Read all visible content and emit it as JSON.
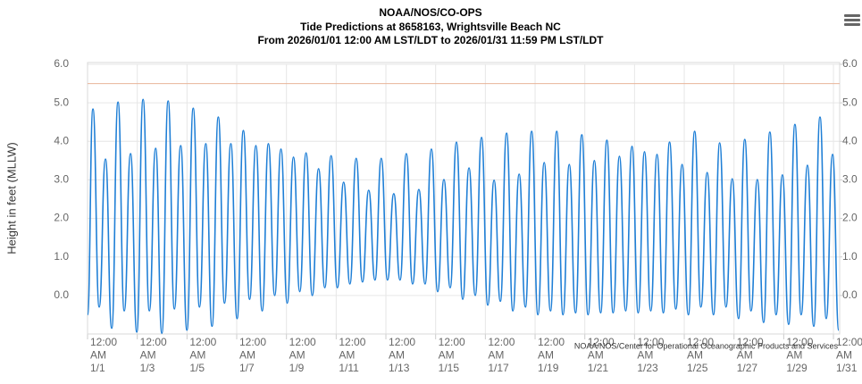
{
  "chart_data": {
    "type": "line",
    "title_lines": [
      "NOAA/NOS/CO-OPS",
      "Tide Predictions at 8658163, Wrightsville Beach NC",
      "From 2026/01/01 12:00 AM LST/LDT to 2026/01/31 11:59 PM LST/LDT"
    ],
    "ylabel": "Height in feet (MLLW)",
    "credit": "NOAA/NOS/Center for Operational Oceanographic Products and Services",
    "grid": true,
    "reference_line": {
      "value": 5.5,
      "color": "#e8b49a"
    },
    "xlim": [
      "2026/01/01 00:00",
      "2026/01/31 06:00"
    ],
    "xticks": [
      {
        "value": "2026/01/01 00:00",
        "label": [
          "12:00",
          "AM",
          "1/1"
        ]
      },
      {
        "value": "2026/01/03 00:00",
        "label": [
          "12:00",
          "AM",
          "1/3"
        ]
      },
      {
        "value": "2026/01/05 00:00",
        "label": [
          "12:00",
          "AM",
          "1/5"
        ]
      },
      {
        "value": "2026/01/07 00:00",
        "label": [
          "12:00",
          "AM",
          "1/7"
        ]
      },
      {
        "value": "2026/01/09 00:00",
        "label": [
          "12:00",
          "AM",
          "1/9"
        ]
      },
      {
        "value": "2026/01/11 00:00",
        "label": [
          "12:00",
          "AM",
          "1/11"
        ]
      },
      {
        "value": "2026/01/13 00:00",
        "label": [
          "12:00",
          "AM",
          "1/13"
        ]
      },
      {
        "value": "2026/01/15 00:00",
        "label": [
          "12:00",
          "AM",
          "1/15"
        ]
      },
      {
        "value": "2026/01/17 00:00",
        "label": [
          "12:00",
          "AM",
          "1/17"
        ]
      },
      {
        "value": "2026/01/19 00:00",
        "label": [
          "12:00",
          "AM",
          "1/19"
        ]
      },
      {
        "value": "2026/01/21 00:00",
        "label": [
          "12:00",
          "AM",
          "1/21"
        ]
      },
      {
        "value": "2026/01/23 00:00",
        "label": [
          "12:00",
          "AM",
          "1/23"
        ]
      },
      {
        "value": "2026/01/25 00:00",
        "label": [
          "12:00",
          "AM",
          "1/25"
        ]
      },
      {
        "value": "2026/01/27 00:00",
        "label": [
          "12:00",
          "AM",
          "1/27"
        ]
      },
      {
        "value": "2026/01/29 00:00",
        "label": [
          "12:00",
          "AM",
          "1/29"
        ]
      },
      {
        "value": "2026/01/31 00:00",
        "label": [
          "12:00",
          "AM",
          "1/31"
        ]
      }
    ],
    "ylim": [
      -1,
      6
    ],
    "yticks": [
      {
        "value": 0,
        "label": "0.0"
      },
      {
        "value": 1,
        "label": "1.0"
      },
      {
        "value": 2,
        "label": "2.0"
      },
      {
        "value": 3,
        "label": "3.0"
      },
      {
        "value": 4,
        "label": "4.0"
      },
      {
        "value": 5,
        "label": "5.0"
      },
      {
        "value": 6,
        "label": "6.0"
      }
    ],
    "y2lim": [
      -1,
      6
    ],
    "y2ticks": [
      {
        "value": 0,
        "label": "0.0"
      },
      {
        "value": 1,
        "label": "1.0"
      },
      {
        "value": 2,
        "label": "2.0"
      },
      {
        "value": 3,
        "label": "3.0"
      },
      {
        "value": 4,
        "label": "4.0"
      },
      {
        "value": 5,
        "label": "5.0"
      },
      {
        "value": 6,
        "label": "6.0"
      }
    ],
    "x": [
      "2026/01/01 00:00",
      "2026/01/01 05:12",
      "2026/01/01 11:15",
      "2026/01/01 17:18",
      "2026/01/01 23:21",
      "2026/01/02 05:24",
      "2026/01/02 11:27",
      "2026/01/02 17:30",
      "2026/01/02 23:33",
      "2026/01/03 05:36",
      "2026/01/03 11:39",
      "2026/01/03 17:42",
      "2026/01/03 23:45",
      "2026/01/04 05:48",
      "2026/01/04 11:51",
      "2026/01/04 17:54",
      "2026/01/04 23:57",
      "2026/01/05 06:00",
      "2026/01/05 12:03",
      "2026/01/05 18:06",
      "2026/01/06 00:09",
      "2026/01/06 06:12",
      "2026/01/06 12:15",
      "2026/01/06 18:18",
      "2026/01/07 00:21",
      "2026/01/07 06:24",
      "2026/01/07 12:27",
      "2026/01/07 18:30",
      "2026/01/08 00:33",
      "2026/01/08 06:36",
      "2026/01/08 12:39",
      "2026/01/08 18:42",
      "2026/01/09 00:45",
      "2026/01/09 06:48",
      "2026/01/09 12:51",
      "2026/01/09 18:54",
      "2026/01/10 00:57",
      "2026/01/10 07:00",
      "2026/01/10 13:03",
      "2026/01/10 19:06",
      "2026/01/11 01:09",
      "2026/01/11 07:12",
      "2026/01/11 13:15",
      "2026/01/11 19:18",
      "2026/01/12 01:21",
      "2026/01/12 07:24",
      "2026/01/12 13:27",
      "2026/01/12 19:30",
      "2026/01/13 01:33",
      "2026/01/13 07:36",
      "2026/01/13 13:39",
      "2026/01/13 19:42",
      "2026/01/14 01:45",
      "2026/01/14 07:48",
      "2026/01/14 13:51",
      "2026/01/14 19:54",
      "2026/01/15 01:57",
      "2026/01/15 08:00",
      "2026/01/15 14:03",
      "2026/01/15 20:06",
      "2026/01/16 02:09",
      "2026/01/16 08:12",
      "2026/01/16 14:15",
      "2026/01/16 20:18",
      "2026/01/17 02:21",
      "2026/01/17 08:24",
      "2026/01/17 14:27",
      "2026/01/17 20:30",
      "2026/01/18 02:33",
      "2026/01/18 08:36",
      "2026/01/18 14:39",
      "2026/01/18 20:42",
      "2026/01/19 02:45",
      "2026/01/19 08:48",
      "2026/01/19 14:51",
      "2026/01/19 20:54",
      "2026/01/20 02:57",
      "2026/01/20 09:00",
      "2026/01/20 15:03",
      "2026/01/20 21:06",
      "2026/01/21 03:09",
      "2026/01/21 09:12",
      "2026/01/21 15:15",
      "2026/01/21 21:18",
      "2026/01/22 03:21",
      "2026/01/22 09:24",
      "2026/01/22 15:27",
      "2026/01/22 21:30",
      "2026/01/23 03:33",
      "2026/01/23 09:36",
      "2026/01/23 15:39",
      "2026/01/23 21:42",
      "2026/01/24 03:45",
      "2026/01/24 09:48",
      "2026/01/24 15:51",
      "2026/01/24 21:54",
      "2026/01/25 03:57",
      "2026/01/25 10:00",
      "2026/01/25 16:03",
      "2026/01/25 22:06",
      "2026/01/26 04:09",
      "2026/01/26 10:12",
      "2026/01/26 16:15",
      "2026/01/26 22:18",
      "2026/01/27 04:21",
      "2026/01/27 10:24",
      "2026/01/27 16:27",
      "2026/01/27 22:30",
      "2026/01/28 04:33",
      "2026/01/28 10:36",
      "2026/01/28 16:39",
      "2026/01/28 22:42",
      "2026/01/29 04:45",
      "2026/01/29 10:48",
      "2026/01/29 16:51",
      "2026/01/29 22:54",
      "2026/01/30 04:57",
      "2026/01/30 11:00",
      "2026/01/30 17:03",
      "2026/01/30 23:06",
      "2026/01/31 05:09"
    ],
    "series": [
      {
        "color": "#1f7fd6",
        "values": [
          -0.5,
          4.84,
          -0.3,
          3.54,
          -0.85,
          5.02,
          -0.4,
          3.68,
          -0.95,
          5.09,
          -0.4,
          3.82,
          -0.98,
          5.05,
          -0.35,
          3.89,
          -0.9,
          4.86,
          -0.3,
          3.94,
          -0.8,
          4.63,
          -0.2,
          3.94,
          -0.6,
          4.28,
          -0.1,
          3.89,
          -0.4,
          3.94,
          0.0,
          3.8,
          -0.2,
          3.59,
          0.1,
          3.7,
          0.0,
          3.29,
          0.2,
          3.63,
          0.2,
          2.94,
          0.3,
          3.56,
          0.35,
          2.73,
          0.4,
          3.56,
          0.4,
          2.64,
          0.4,
          3.68,
          0.3,
          2.75,
          0.3,
          3.8,
          0.1,
          3.01,
          0.2,
          3.98,
          -0.1,
          3.31,
          0.0,
          4.1,
          -0.25,
          2.99,
          -0.15,
          4.21,
          -0.4,
          3.15,
          -0.3,
          4.26,
          -0.5,
          3.45,
          -0.4,
          4.26,
          -0.5,
          3.4,
          -0.45,
          4.17,
          -0.5,
          3.5,
          -0.45,
          4.03,
          -0.45,
          3.61,
          -0.4,
          3.87,
          -0.45,
          3.73,
          -0.4,
          3.66,
          -0.45,
          3.98,
          -0.35,
          3.4,
          -0.5,
          4.26,
          -0.3,
          3.19,
          -0.5,
          3.96,
          -0.3,
          3.03,
          -0.6,
          4.05,
          -0.4,
          3.01,
          -0.7,
          4.24,
          -0.5,
          3.13,
          -0.75,
          4.44,
          -0.5,
          3.38,
          -0.8,
          4.63,
          -0.6,
          3.66,
          -0.9
        ]
      }
    ]
  }
}
